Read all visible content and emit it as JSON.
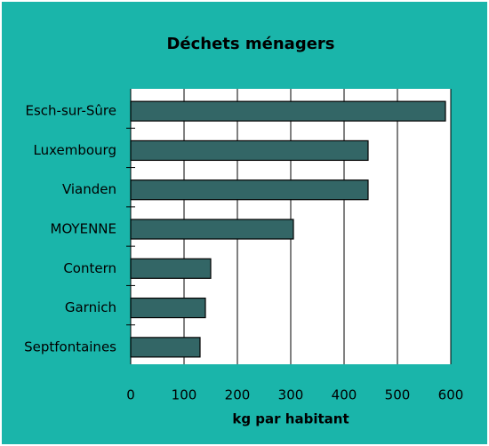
{
  "chart_data": {
    "type": "hbar",
    "title": "Déchets ménagers",
    "xlabel": "kg par habitant",
    "categories": [
      "Esch-sur-Sûre",
      "Luxembourg",
      "Vianden",
      "MOYENNE",
      "Contern",
      "Garnich",
      "Septfontaines"
    ],
    "values": [
      590,
      445,
      445,
      305,
      150,
      140,
      130
    ],
    "color": "#336666",
    "background": "#1ab5aa",
    "xlim": [
      0,
      600
    ],
    "xticks": [
      0,
      100,
      200,
      300,
      400,
      500,
      600
    ],
    "grid": true
  }
}
